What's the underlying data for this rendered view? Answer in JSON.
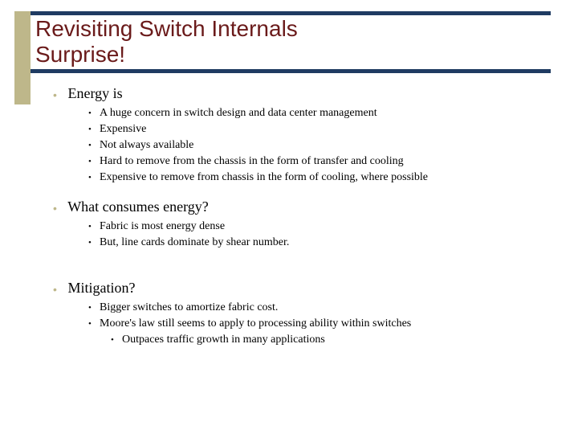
{
  "colors": {
    "accent_bar": "#beb78a",
    "rule": "#1f3b62",
    "title": "#6a1a1a",
    "text": "#000000",
    "background": "#ffffff"
  },
  "title": {
    "line1": "Revisiting Switch Internals",
    "line2": "Surprise!",
    "font_family": "Arial",
    "font_size_pt": 28
  },
  "body_font": {
    "family": "Times New Roman",
    "lvl1_size_pt": 18,
    "lvl2_size_pt": 14
  },
  "sections": [
    {
      "heading": "Energy is",
      "items": [
        {
          "text": "A huge concern in switch design and data center management"
        },
        {
          "text": "Expensive"
        },
        {
          "text": "Not always available"
        },
        {
          "text": "Hard to remove from the chassis in the form of transfer and cooling"
        },
        {
          "text": "Expensive to remove from chassis in the form of cooling, where possible"
        }
      ]
    },
    {
      "heading": "What consumes energy?",
      "items": [
        {
          "text": "Fabric is most energy dense"
        },
        {
          "text": "But, line cards dominate by shear number."
        }
      ]
    },
    {
      "heading": "Mitigation?",
      "items": [
        {
          "text": "Bigger switches to amortize fabric cost."
        },
        {
          "text": "Moore's law still seems to apply to processing ability within switches",
          "subitems": [
            {
              "text": "Outpaces traffic growth in many applications"
            }
          ]
        }
      ]
    }
  ]
}
